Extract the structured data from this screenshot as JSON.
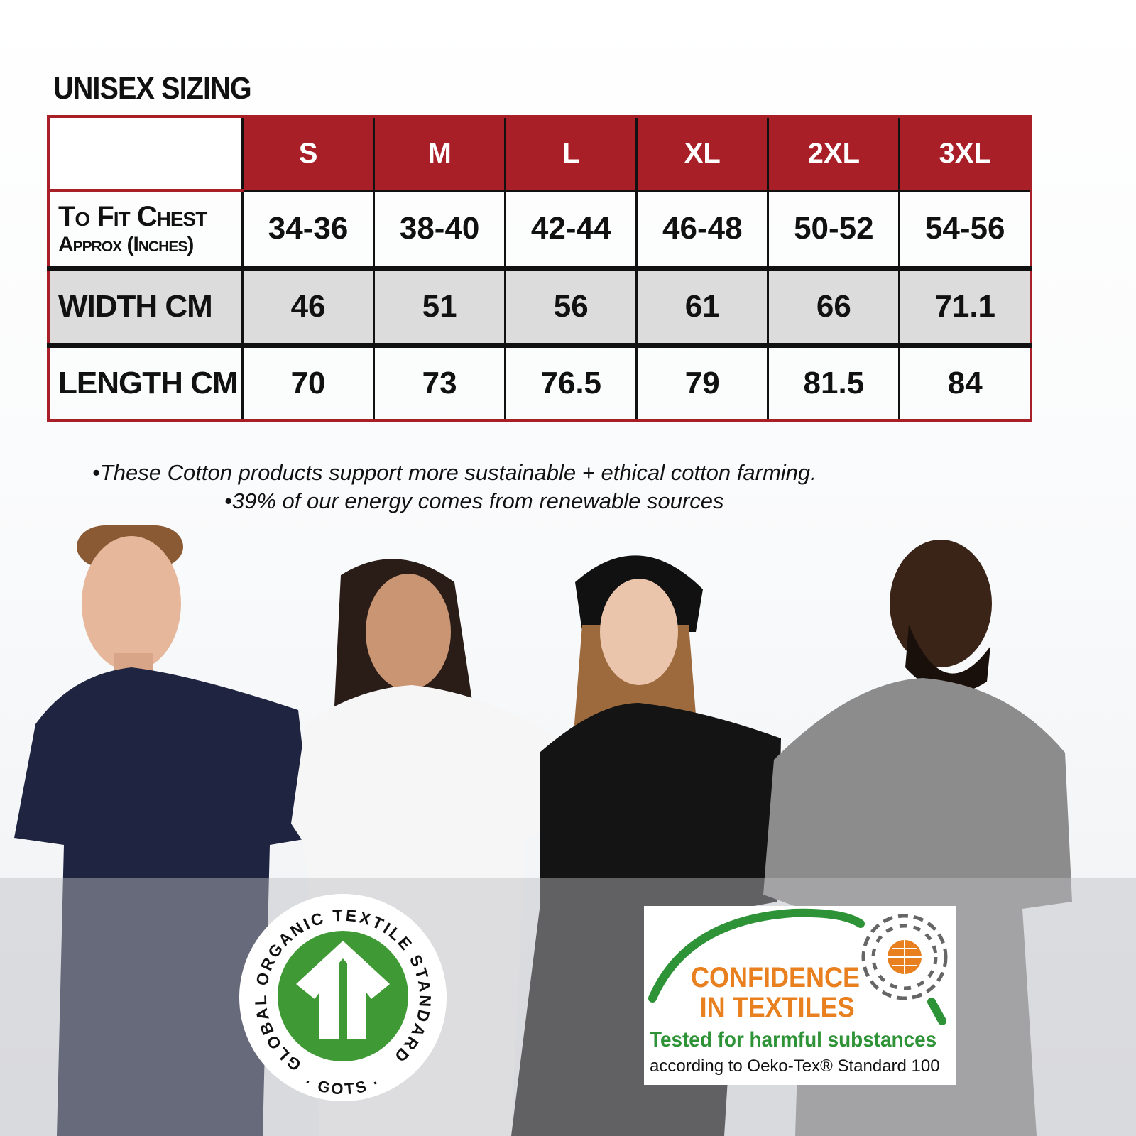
{
  "title": "UNISEX SIZING",
  "table": {
    "sizes": [
      "S",
      "M",
      "L",
      "XL",
      "2XL",
      "3XL"
    ],
    "rows": [
      {
        "label": "To Fit Chest",
        "sublabel": "Approx (Inches)",
        "values": [
          "34-36",
          "38-40",
          "42-44",
          "46-48",
          "50-52",
          "54-56"
        ]
      },
      {
        "label": "WIDTH CM",
        "values": [
          "46",
          "51",
          "56",
          "61",
          "66",
          "71.1"
        ]
      },
      {
        "label": "LENGTH CM",
        "values": [
          "70",
          "73",
          "76.5",
          "79",
          "81.5",
          "84"
        ]
      }
    ]
  },
  "notes": [
    "•These Cotton products support more sustainable + ethical cotton farming.",
    "•39% of our energy comes from renewable sources"
  ],
  "models": [
    {
      "shirt": "#1f2540"
    },
    {
      "shirt": "#f6f6f6"
    },
    {
      "shirt": "#141414"
    },
    {
      "shirt": "#8c8c8c"
    }
  ],
  "gots": {
    "ring_text": "GLOBAL ORGANIC TEXTILE STANDARD",
    "bottom_text": "· GOTS ·",
    "color": "#3f9a35"
  },
  "oeko": {
    "line1": "CONFIDENCE",
    "line2": "IN TEXTILES",
    "tagline": "Tested for harmful substances",
    "subline": "according to Oeko-Tex® Standard 100",
    "orange": "#e8801f",
    "green": "#2e9236"
  },
  "colors": {
    "header_red": "#a91f27",
    "row_grey": "#dcdcdc"
  }
}
